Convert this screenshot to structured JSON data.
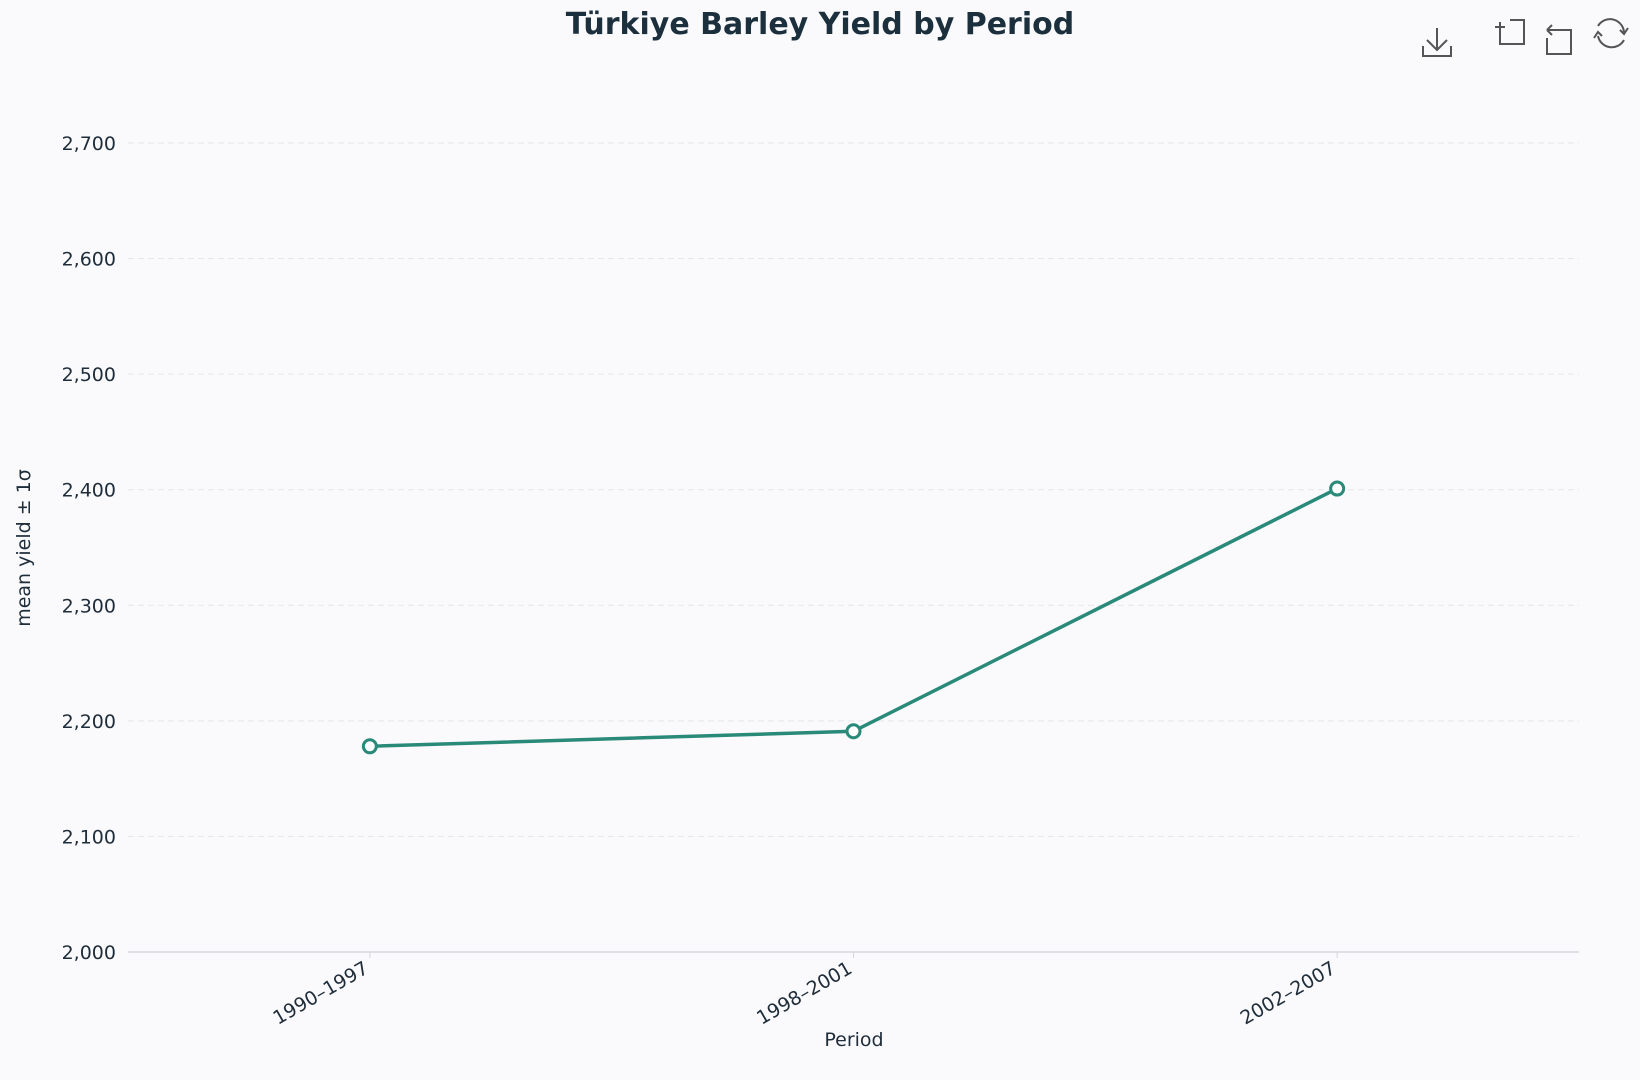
{
  "chart_data": {
    "type": "line",
    "title": "Türkiye Barley Yield by Period",
    "x_label": "Period",
    "y_label": "mean yield ± 1σ",
    "categories": [
      "1990–1997",
      "1998–2001",
      "2002–2007"
    ],
    "series": [
      {
        "name": "mean yield",
        "color": "#2a8a7a",
        "values": [
          2178,
          2191,
          2401
        ]
      }
    ],
    "ylim": [
      2000,
      2700
    ],
    "yticks": [
      {
        "value": 2000,
        "label": "2,000"
      },
      {
        "value": 2100,
        "label": "2,100"
      },
      {
        "value": 2200,
        "label": "2,200"
      },
      {
        "value": 2300,
        "label": "2,300"
      },
      {
        "value": 2400,
        "label": "2,400"
      },
      {
        "value": 2500,
        "label": "2,500"
      },
      {
        "value": 2600,
        "label": "2,600"
      },
      {
        "value": 2700,
        "label": "2,700"
      }
    ],
    "grid": true
  }
}
